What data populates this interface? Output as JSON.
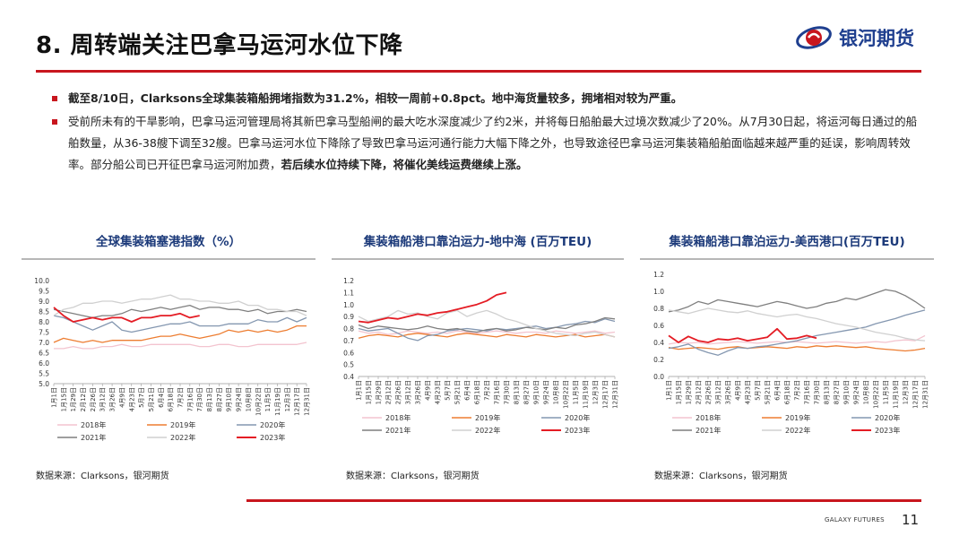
{
  "header": {
    "title": "8. 周转端关注巴拿马运河水位下降",
    "logo_text": "银河期货"
  },
  "bullets": {
    "b1_bold": "截至8/10日，Clarksons全球集装箱船拥堵指数为31.2%，相较一周前+0.8pct。地中海货量较多，拥堵相对较为严重。",
    "b2_text": "受前所未有的干旱影响，巴拿马运河管理局将其新巴拿马型船闸的最大吃水深度减少了约2米，并将每日船舶最大过境次数减少了20%。从7月30日起，将运河每日通过的船舶数量，从36-38艘下调至32艘。巴拿马运河水位下降除了导致巴拿马运河通行能力大幅下降之外，也导致途径巴拿马运河集装箱船舶面临越来越严重的延误，影响周转效率。部分船公司已开征巴拿马运河附加费，",
    "b2_bold": "若后续水位持续下降，将催化美线运费继续上涨。"
  },
  "chart_data": [
    {
      "type": "line",
      "title": "全球集装箱塞港指数（%）",
      "ylim": [
        5.0,
        10.0
      ],
      "y_ticks": [
        "5.0",
        "5.5",
        "6.0",
        "6.5",
        "7.0",
        "7.5",
        "8.0",
        "8.5",
        "9.0",
        "9.5",
        "10.0"
      ],
      "x_ticks": [
        "1月1日",
        "1月15日",
        "1月29日",
        "2月12日",
        "2月26日",
        "3月12日",
        "3月26日",
        "4月9日",
        "4月23日",
        "5月7日",
        "5月21日",
        "6月4日",
        "6月18日",
        "7月2日",
        "7月16日",
        "7月30日",
        "8月13日",
        "8月27日",
        "9月10日",
        "9月24日",
        "10月8日",
        "10月22日",
        "11月5日",
        "11月19日",
        "12月3日",
        "12月17日",
        "12月31日"
      ],
      "series": [
        {
          "name": "2018年",
          "color": "#f3c4cf",
          "dash": false,
          "values": [
            6.7,
            6.7,
            6.8,
            6.7,
            6.7,
            6.8,
            6.8,
            6.9,
            6.8,
            6.8,
            6.9,
            6.9,
            6.9,
            6.9,
            6.9,
            6.8,
            6.8,
            6.9,
            6.9,
            6.8,
            6.8,
            6.9,
            6.9,
            6.9,
            6.9,
            6.9,
            7.0
          ]
        },
        {
          "name": "2019年",
          "color": "#ed7d31",
          "dash": false,
          "values": [
            7.0,
            7.2,
            7.1,
            7.0,
            7.1,
            7.0,
            7.1,
            7.1,
            7.1,
            7.1,
            7.2,
            7.3,
            7.3,
            7.4,
            7.3,
            7.2,
            7.3,
            7.4,
            7.6,
            7.5,
            7.6,
            7.5,
            7.6,
            7.5,
            7.6,
            7.8,
            7.8
          ]
        },
        {
          "name": "2020年",
          "color": "#8497b0",
          "dash": false,
          "values": [
            8.3,
            8.2,
            8.0,
            7.8,
            7.6,
            7.8,
            8.0,
            7.6,
            7.5,
            7.6,
            7.7,
            7.8,
            7.9,
            7.9,
            8.0,
            7.8,
            7.8,
            7.8,
            7.9,
            7.9,
            7.9,
            8.1,
            8.0,
            8.0,
            8.2,
            8.0,
            8.2
          ]
        },
        {
          "name": "2021年",
          "color": "#7f7f7f",
          "dash": false,
          "values": [
            8.6,
            8.5,
            8.4,
            8.3,
            8.2,
            8.3,
            8.3,
            8.4,
            8.6,
            8.5,
            8.6,
            8.7,
            8.6,
            8.7,
            8.8,
            8.6,
            8.7,
            8.7,
            8.6,
            8.6,
            8.5,
            8.6,
            8.4,
            8.5,
            8.5,
            8.6,
            8.5
          ]
        },
        {
          "name": "2022年",
          "color": "#d0d0d0",
          "dash": false,
          "values": [
            8.3,
            8.6,
            8.7,
            8.9,
            8.9,
            9.0,
            9.0,
            8.9,
            9.0,
            9.1,
            9.1,
            9.2,
            9.3,
            9.1,
            9.1,
            9.0,
            9.0,
            8.9,
            8.9,
            9.0,
            8.8,
            8.8,
            8.6,
            8.6,
            8.5,
            8.5,
            8.3
          ]
        },
        {
          "name": "2023年",
          "color": "#e41c24",
          "dash": false,
          "values": [
            8.7,
            8.3,
            8.0,
            8.1,
            8.2,
            8.1,
            8.2,
            8.2,
            8.0,
            8.2,
            8.2,
            8.3,
            8.3,
            8.4,
            8.2,
            8.3
          ]
        }
      ],
      "source": "数据来源：Clarksons，银河期货"
    },
    {
      "type": "line",
      "title": "集装箱船港口靠泊运力-地中海 (百万TEU)",
      "ylim": [
        0.4,
        1.2
      ],
      "y_ticks": [
        "0.4",
        "0.5",
        "0.6",
        "0.7",
        "0.8",
        "0.9",
        "1.0",
        "1.1",
        "1.2"
      ],
      "x_ticks": [
        "1月1日",
        "1月15日",
        "1月29日",
        "2月12日",
        "2月26日",
        "3月12日",
        "3月26日",
        "4月9日",
        "4月23日",
        "5月7日",
        "5月21日",
        "6月4日",
        "6月18日",
        "7月2日",
        "7月16日",
        "7月30日",
        "8月13日",
        "8月27日",
        "9月10日",
        "9月24日",
        "10月8日",
        "10月22日",
        "11月5日",
        "11月19日",
        "12月3日",
        "12月17日",
        "12月31日"
      ],
      "series": [
        {
          "name": "2018年",
          "color": "#f3c4cf",
          "dash": false,
          "values": [
            0.78,
            0.76,
            0.77,
            0.75,
            0.76,
            0.78,
            0.77,
            0.76,
            0.77,
            0.76,
            0.78,
            0.77,
            0.76,
            0.77,
            0.78,
            0.77,
            0.76,
            0.77,
            0.77,
            0.76,
            0.78,
            0.77,
            0.76,
            0.77,
            0.78,
            0.76,
            0.77
          ]
        },
        {
          "name": "2019年",
          "color": "#ed7d31",
          "dash": false,
          "values": [
            0.72,
            0.74,
            0.75,
            0.74,
            0.73,
            0.75,
            0.76,
            0.75,
            0.74,
            0.73,
            0.75,
            0.76,
            0.75,
            0.74,
            0.73,
            0.75,
            0.74,
            0.73,
            0.75,
            0.74,
            0.73,
            0.74,
            0.75,
            0.73,
            0.74,
            0.75,
            0.73
          ]
        },
        {
          "name": "2020年",
          "color": "#8497b0",
          "dash": false,
          "values": [
            0.8,
            0.78,
            0.79,
            0.8,
            0.76,
            0.72,
            0.7,
            0.74,
            0.75,
            0.78,
            0.79,
            0.8,
            0.79,
            0.78,
            0.8,
            0.79,
            0.8,
            0.81,
            0.82,
            0.8,
            0.81,
            0.83,
            0.84,
            0.86,
            0.85,
            0.88,
            0.86
          ]
        },
        {
          "name": "2021年",
          "color": "#7f7f7f",
          "dash": false,
          "values": [
            0.83,
            0.8,
            0.82,
            0.81,
            0.8,
            0.79,
            0.8,
            0.82,
            0.8,
            0.79,
            0.8,
            0.78,
            0.77,
            0.79,
            0.8,
            0.78,
            0.79,
            0.81,
            0.8,
            0.79,
            0.81,
            0.8,
            0.83,
            0.84,
            0.86,
            0.89,
            0.88
          ]
        },
        {
          "name": "2022年",
          "color": "#d0d0d0",
          "dash": false,
          "values": [
            0.9,
            0.86,
            0.88,
            0.9,
            0.95,
            0.92,
            0.93,
            0.9,
            0.88,
            0.93,
            0.95,
            0.9,
            0.93,
            0.95,
            0.92,
            0.88,
            0.86,
            0.83,
            0.8,
            0.78,
            0.76,
            0.75,
            0.74,
            0.76,
            0.77,
            0.75,
            0.73
          ]
        },
        {
          "name": "2023年",
          "color": "#e41c24",
          "dash": false,
          "values": [
            0.86,
            0.85,
            0.87,
            0.89,
            0.88,
            0.9,
            0.92,
            0.91,
            0.93,
            0.94,
            0.96,
            0.98,
            1.0,
            1.03,
            1.08,
            1.1
          ]
        }
      ],
      "source": "数据来源：Clarksons，银河期货"
    },
    {
      "type": "line",
      "title": "集装箱船港口靠泊运力-美西港口(百万TEU)",
      "ylim": [
        0.0,
        1.2
      ],
      "y_ticks": [
        "0.0",
        "0.2",
        "0.4",
        "0.6",
        "0.8",
        "1.0",
        "1.2"
      ],
      "x_ticks": [
        "1月1日",
        "1月15日",
        "1月29日",
        "2月12日",
        "2月26日",
        "3月12日",
        "3月26日",
        "4月9日",
        "4月23日",
        "5月7日",
        "5月21日",
        "6月4日",
        "6月18日",
        "7月2日",
        "7月16日",
        "7月30日",
        "8月13日",
        "8月27日",
        "9月10日",
        "9月24日",
        "10月8日",
        "10月22日",
        "11月5日",
        "11月19日",
        "12月3日",
        "12月17日",
        "12月31日"
      ],
      "series": [
        {
          "name": "2018年",
          "color": "#f3c4cf",
          "dash": false,
          "values": [
            0.38,
            0.4,
            0.39,
            0.4,
            0.38,
            0.39,
            0.4,
            0.41,
            0.4,
            0.39,
            0.4,
            0.41,
            0.4,
            0.41,
            0.4,
            0.39,
            0.4,
            0.41,
            0.4,
            0.39,
            0.4,
            0.41,
            0.4,
            0.42,
            0.43,
            0.42,
            0.48
          ]
        },
        {
          "name": "2019年",
          "color": "#ed7d31",
          "dash": false,
          "values": [
            0.34,
            0.32,
            0.33,
            0.34,
            0.33,
            0.32,
            0.34,
            0.35,
            0.33,
            0.34,
            0.35,
            0.34,
            0.33,
            0.35,
            0.34,
            0.36,
            0.35,
            0.36,
            0.35,
            0.34,
            0.35,
            0.33,
            0.32,
            0.31,
            0.3,
            0.31,
            0.33
          ]
        },
        {
          "name": "2020年",
          "color": "#8497b0",
          "dash": false,
          "values": [
            0.33,
            0.35,
            0.38,
            0.32,
            0.28,
            0.25,
            0.3,
            0.34,
            0.33,
            0.35,
            0.36,
            0.38,
            0.4,
            0.42,
            0.45,
            0.48,
            0.5,
            0.52,
            0.54,
            0.56,
            0.58,
            0.62,
            0.65,
            0.68,
            0.72,
            0.75,
            0.78
          ]
        },
        {
          "name": "2021年",
          "color": "#7f7f7f",
          "dash": false,
          "values": [
            0.76,
            0.78,
            0.82,
            0.88,
            0.85,
            0.9,
            0.88,
            0.86,
            0.84,
            0.82,
            0.85,
            0.88,
            0.86,
            0.83,
            0.8,
            0.82,
            0.86,
            0.88,
            0.92,
            0.9,
            0.94,
            0.98,
            1.02,
            1.0,
            0.95,
            0.88,
            0.8
          ]
        },
        {
          "name": "2022年",
          "color": "#d0d0d0",
          "dash": false,
          "values": [
            0.78,
            0.76,
            0.74,
            0.77,
            0.8,
            0.78,
            0.76,
            0.75,
            0.77,
            0.74,
            0.72,
            0.7,
            0.72,
            0.73,
            0.7,
            0.68,
            0.65,
            0.62,
            0.6,
            0.58,
            0.55,
            0.52,
            0.5,
            0.48,
            0.45,
            0.43,
            0.42
          ]
        },
        {
          "name": "2023年",
          "color": "#e41c24",
          "dash": false,
          "values": [
            0.48,
            0.4,
            0.47,
            0.42,
            0.4,
            0.44,
            0.43,
            0.45,
            0.42,
            0.44,
            0.46,
            0.56,
            0.44,
            0.45,
            0.48,
            0.45
          ]
        }
      ],
      "source": "数据来源：Clarksons，银河期货"
    }
  ],
  "footer": {
    "brand": "GALAXY FUTURES",
    "page": "11"
  }
}
